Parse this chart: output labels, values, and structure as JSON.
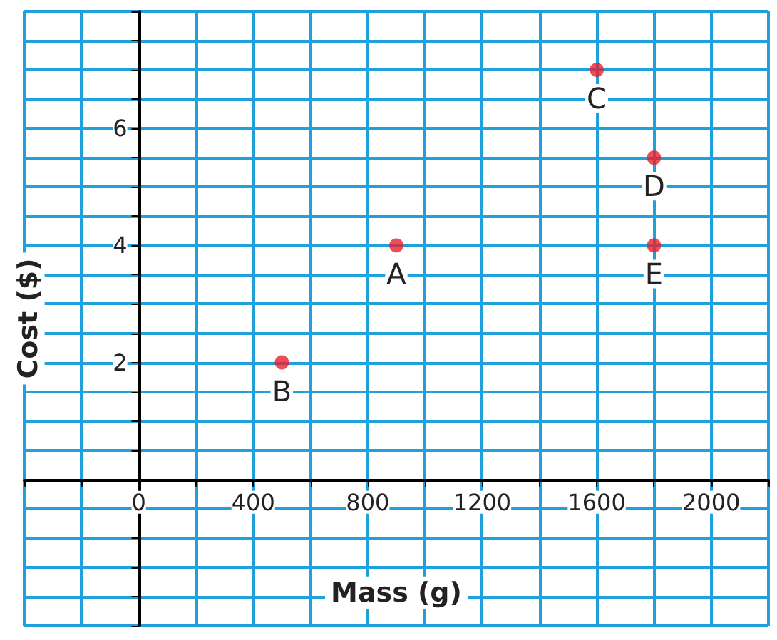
{
  "chart_data": {
    "type": "scatter",
    "xlabel": "Mass (g)",
    "ylabel": "Cost ($)",
    "x": [
      900,
      500,
      1600,
      1800,
      1800
    ],
    "series": [
      {
        "color": "#e8202a",
        "values": [
          4,
          2,
          7,
          5.5,
          4
        ]
      }
    ],
    "annotations": [
      {
        "text": "A",
        "x": 900,
        "y": 4
      },
      {
        "text": "B",
        "x": 500,
        "y": 2
      },
      {
        "text": "C",
        "x": 1600,
        "y": 7
      },
      {
        "text": "D",
        "x": 1800,
        "y": 5.5
      },
      {
        "text": "E",
        "x": 1800,
        "y": 4
      }
    ],
    "xlim": [
      -400,
      2200
    ],
    "ylim": [
      -2.5,
      8
    ],
    "xticks": [
      {
        "value": -400,
        "label": null
      },
      {
        "value": -200,
        "label": null
      },
      0,
      {
        "value": 200,
        "label": null
      },
      400,
      {
        "value": 600,
        "label": null
      },
      800,
      {
        "value": 1000,
        "label": null
      },
      1200,
      {
        "value": 1400,
        "label": null
      },
      1600,
      {
        "value": 1800,
        "label": null
      },
      2000,
      {
        "value": 2200,
        "label": null
      }
    ],
    "yticks": [
      {
        "value": -2.5,
        "label": null
      },
      {
        "value": -2,
        "label": null
      },
      {
        "value": -1.5,
        "label": null
      },
      {
        "value": -1,
        "label": null
      },
      {
        "value": -0.5,
        "label": null
      },
      {
        "value": 0,
        "label": null
      },
      {
        "value": 0.5,
        "label": null
      },
      {
        "value": 1,
        "label": null
      },
      {
        "value": 1.5,
        "label": null
      },
      2,
      {
        "value": 2.5,
        "label": null
      },
      {
        "value": 3,
        "label": null
      },
      {
        "value": 3.5,
        "label": null
      },
      4,
      {
        "value": 4.5,
        "label": null
      },
      {
        "value": 5,
        "label": null
      },
      {
        "value": 5.5,
        "label": null
      },
      6,
      {
        "value": 6.5,
        "label": null
      },
      {
        "value": 7,
        "label": null
      },
      {
        "value": 7.5,
        "label": null
      },
      {
        "value": 8,
        "label": null
      }
    ],
    "grid": true,
    "marker": "circle"
  }
}
